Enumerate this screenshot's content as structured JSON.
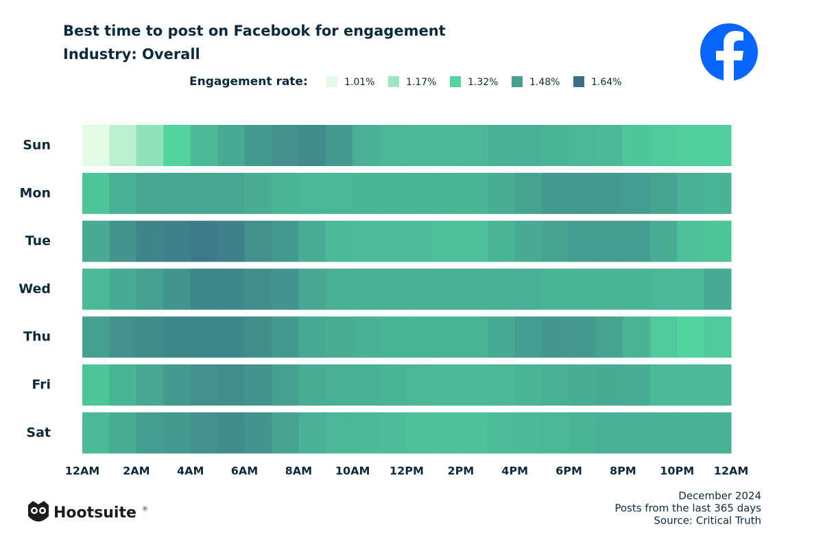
{
  "chart_data": {
    "type": "heatmap",
    "title": "Best time to post on Facebook for engagement",
    "subtitle": "Industry: Overall",
    "legend_title": "Engagement rate:",
    "color_scale": [
      {
        "value": 1.01,
        "label": "1.01%",
        "color": "#e2fbe4"
      },
      {
        "value": 1.17,
        "label": "1.17%",
        "color": "#9de6c0"
      },
      {
        "value": 1.32,
        "label": "1.32%",
        "color": "#52d49f"
      },
      {
        "value": 1.48,
        "label": "1.48%",
        "color": "#45a08f"
      },
      {
        "value": 1.64,
        "label": "1.64%",
        "color": "#3a6f85"
      }
    ],
    "categories": [
      "Sun",
      "Mon",
      "Tue",
      "Wed",
      "Thu",
      "Fri",
      "Sat"
    ],
    "xlim": [
      0,
      24
    ],
    "xticks": [
      {
        "value": 0,
        "label": "12AM"
      },
      {
        "value": 2,
        "label": "2AM"
      },
      {
        "value": 4,
        "label": "4AM"
      },
      {
        "value": 6,
        "label": "6AM"
      },
      {
        "value": 8,
        "label": "8AM"
      },
      {
        "value": 10,
        "label": "10AM"
      },
      {
        "value": 12,
        "label": "12PM"
      },
      {
        "value": 14,
        "label": "2PM"
      },
      {
        "value": 16,
        "label": "4PM"
      },
      {
        "value": 18,
        "label": "6PM"
      },
      {
        "value": 20,
        "label": "8PM"
      },
      {
        "value": 22,
        "label": "10PM"
      },
      {
        "value": 24,
        "label": "12AM"
      }
    ],
    "values": [
      [
        1.01,
        1.1,
        1.2,
        1.32,
        1.4,
        1.45,
        1.5,
        1.53,
        1.55,
        1.5,
        1.43,
        1.41,
        1.4,
        1.4,
        1.41,
        1.43,
        1.43,
        1.42,
        1.41,
        1.4,
        1.36,
        1.35,
        1.34,
        1.34
      ],
      [
        1.37,
        1.43,
        1.46,
        1.46,
        1.46,
        1.46,
        1.44,
        1.42,
        1.41,
        1.41,
        1.42,
        1.42,
        1.42,
        1.42,
        1.42,
        1.44,
        1.47,
        1.5,
        1.5,
        1.5,
        1.49,
        1.47,
        1.43,
        1.42
      ],
      [
        1.45,
        1.52,
        1.57,
        1.58,
        1.6,
        1.58,
        1.53,
        1.5,
        1.44,
        1.4,
        1.39,
        1.39,
        1.39,
        1.38,
        1.38,
        1.42,
        1.45,
        1.47,
        1.49,
        1.49,
        1.49,
        1.44,
        1.38,
        1.37
      ],
      [
        1.4,
        1.45,
        1.48,
        1.52,
        1.56,
        1.56,
        1.54,
        1.52,
        1.46,
        1.43,
        1.43,
        1.43,
        1.43,
        1.43,
        1.43,
        1.43,
        1.43,
        1.42,
        1.42,
        1.42,
        1.42,
        1.41,
        1.41,
        1.45
      ],
      [
        1.48,
        1.53,
        1.55,
        1.56,
        1.56,
        1.56,
        1.54,
        1.5,
        1.45,
        1.44,
        1.43,
        1.42,
        1.42,
        1.42,
        1.42,
        1.45,
        1.49,
        1.51,
        1.5,
        1.47,
        1.42,
        1.35,
        1.32,
        1.35
      ],
      [
        1.37,
        1.42,
        1.46,
        1.5,
        1.53,
        1.54,
        1.52,
        1.48,
        1.44,
        1.43,
        1.43,
        1.42,
        1.41,
        1.4,
        1.4,
        1.41,
        1.42,
        1.43,
        1.44,
        1.45,
        1.44,
        1.4,
        1.4,
        1.4
      ],
      [
        1.4,
        1.44,
        1.49,
        1.5,
        1.53,
        1.55,
        1.52,
        1.47,
        1.43,
        1.41,
        1.4,
        1.39,
        1.38,
        1.38,
        1.38,
        1.39,
        1.4,
        1.41,
        1.42,
        1.43,
        1.43,
        1.43,
        1.43,
        1.43
      ]
    ]
  },
  "footer": {
    "date": "December 2024",
    "note": "Posts from the last 365 days",
    "source": "Source: Critical Truth"
  },
  "brand": {
    "name": "Hootsuite",
    "mark": "®"
  }
}
